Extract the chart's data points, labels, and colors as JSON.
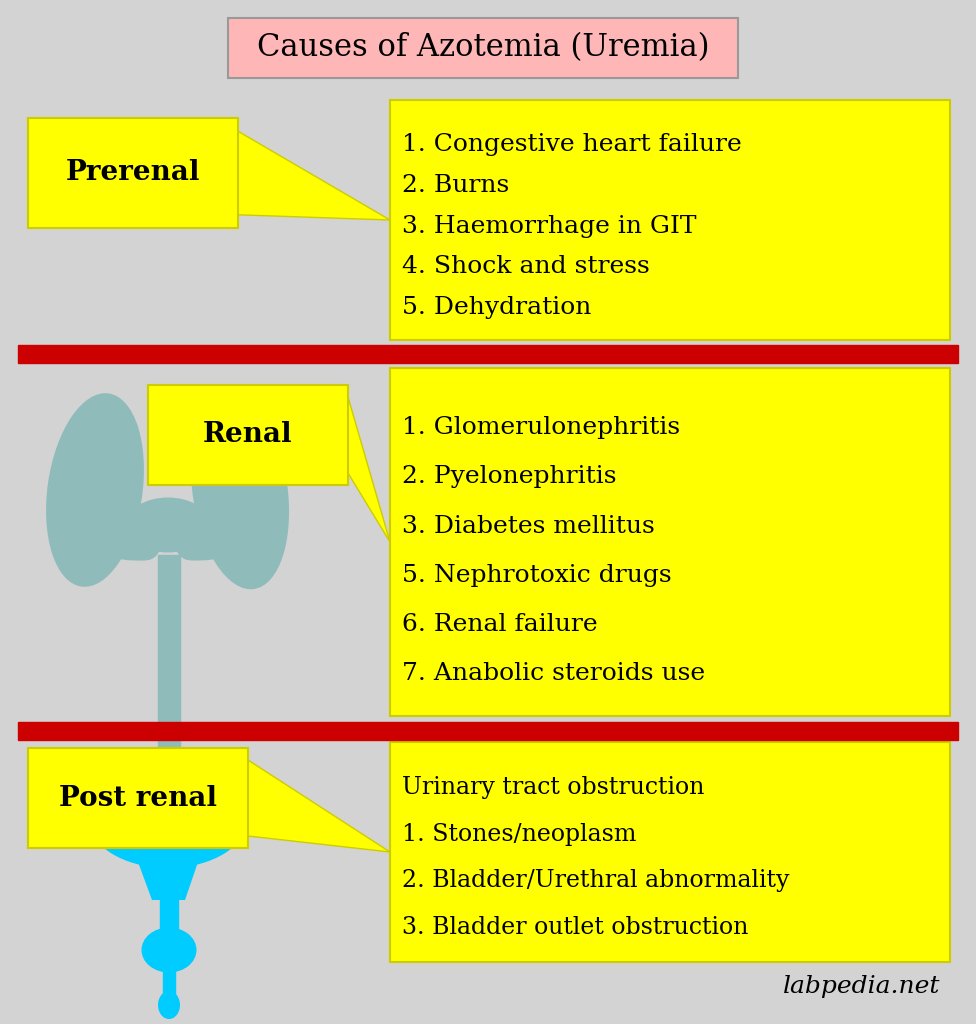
{
  "title": "Causes of Azotemia (Uremia)",
  "title_bg": "#FFB6B6",
  "title_border": "#999999",
  "bg_color": "#D3D3D3",
  "yellow": "#FFFF00",
  "yellow_border": "#CCCC00",
  "red_line_color": "#CC0000",
  "kidney_color": "#8FBCBB",
  "bladder_color": "#00CCFF",
  "prerenal_label": "Prerenal",
  "prerenal_items": [
    "1. Congestive heart failure",
    "2. Burns",
    "3. Haemorrhage in GIT",
    "4. Shock and stress",
    "5. Dehydration"
  ],
  "renal_label": "Renal",
  "renal_items": [
    "1. Glomerulonephritis",
    "2. Pyelonephritis",
    "3. Diabetes mellitus",
    "5. Nephrotoxic drugs",
    "6. Renal failure",
    "7. Anabolic steroids use"
  ],
  "postrenal_label": "Post renal",
  "postrenal_items": [
    "Urinary tract obstruction",
    "1. Stones/neoplasm",
    "2. Bladder/Urethral abnormality",
    "3. Bladder outlet obstruction"
  ],
  "watermark": "labpedia.net",
  "font_family": "DejaVu Serif"
}
